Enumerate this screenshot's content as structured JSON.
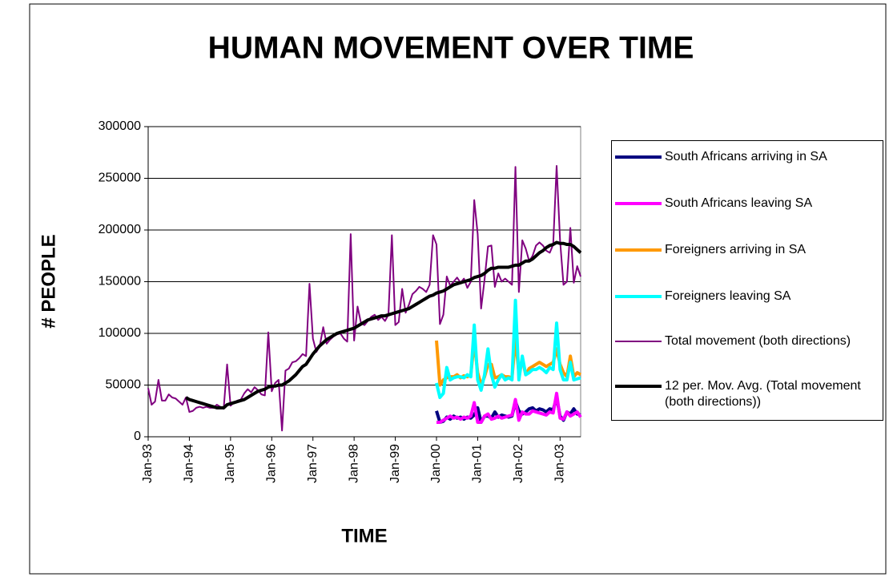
{
  "chart_data": {
    "type": "line",
    "title": "HUMAN MOVEMENT OVER TIME",
    "x_label": "TIME",
    "y_label": "# PEOPLE",
    "categories": [
      "Jan-93",
      null,
      null,
      null,
      null,
      null,
      null,
      null,
      null,
      null,
      null,
      null,
      "Jan-94",
      null,
      null,
      null,
      null,
      null,
      null,
      null,
      null,
      null,
      null,
      null,
      "Jan-95",
      null,
      null,
      null,
      null,
      null,
      null,
      null,
      null,
      null,
      null,
      null,
      "Jan-96",
      null,
      null,
      null,
      null,
      null,
      null,
      null,
      null,
      null,
      null,
      null,
      "Jan-97",
      null,
      null,
      null,
      null,
      null,
      null,
      null,
      null,
      null,
      null,
      null,
      "Jan-98",
      null,
      null,
      null,
      null,
      null,
      null,
      null,
      null,
      null,
      null,
      null,
      "Jan-99",
      null,
      null,
      null,
      null,
      null,
      null,
      null,
      null,
      null,
      null,
      null,
      "Jan-00",
      null,
      null,
      null,
      null,
      null,
      null,
      null,
      null,
      null,
      null,
      null,
      "Jan-01",
      null,
      null,
      null,
      null,
      null,
      null,
      null,
      null,
      null,
      null,
      null,
      "Jan-02",
      null,
      null,
      null,
      null,
      null,
      null,
      null,
      null,
      null,
      null,
      null,
      "Jan-03",
      null,
      null,
      null,
      null,
      null,
      null
    ],
    "ylim": [
      0,
      300000
    ],
    "yticks": [
      0,
      50000,
      100000,
      150000,
      200000,
      250000,
      300000
    ],
    "grid": true,
    "legend": "right",
    "series": [
      {
        "name": "South Africans arriving in SA",
        "color": "#000080",
        "width": 4,
        "values": [
          null,
          null,
          null,
          null,
          null,
          null,
          null,
          null,
          null,
          null,
          null,
          null,
          null,
          null,
          null,
          null,
          null,
          null,
          null,
          null,
          null,
          null,
          null,
          null,
          null,
          null,
          null,
          null,
          null,
          null,
          null,
          null,
          null,
          null,
          null,
          null,
          null,
          null,
          null,
          null,
          null,
          null,
          null,
          null,
          null,
          null,
          null,
          null,
          null,
          null,
          null,
          null,
          null,
          null,
          null,
          null,
          null,
          null,
          null,
          null,
          null,
          null,
          null,
          null,
          null,
          null,
          null,
          null,
          null,
          null,
          null,
          null,
          null,
          null,
          null,
          null,
          null,
          null,
          null,
          null,
          null,
          null,
          null,
          null,
          25000,
          14000,
          15000,
          19000,
          17000,
          20000,
          18000,
          19000,
          17000,
          19000,
          18000,
          21000,
          28000,
          14000,
          20000,
          20000,
          18000,
          24000,
          19000,
          21000,
          20000,
          19000,
          20000,
          34000,
          25000,
          22000,
          24000,
          27000,
          28000,
          25000,
          27000,
          26000,
          24000,
          27000,
          26000,
          38000,
          20000,
          16000,
          24000,
          22000,
          27000,
          22000,
          21000
        ]
      },
      {
        "name": "South Africans leaving SA",
        "color": "#ff00ff",
        "width": 4,
        "values": [
          null,
          null,
          null,
          null,
          null,
          null,
          null,
          null,
          null,
          null,
          null,
          null,
          null,
          null,
          null,
          null,
          null,
          null,
          null,
          null,
          null,
          null,
          null,
          null,
          null,
          null,
          null,
          null,
          null,
          null,
          null,
          null,
          null,
          null,
          null,
          null,
          null,
          null,
          null,
          null,
          null,
          null,
          null,
          null,
          null,
          null,
          null,
          null,
          null,
          null,
          null,
          null,
          null,
          null,
          null,
          null,
          null,
          null,
          null,
          null,
          null,
          null,
          null,
          null,
          null,
          null,
          null,
          null,
          null,
          null,
          null,
          null,
          null,
          null,
          null,
          null,
          null,
          null,
          null,
          null,
          null,
          null,
          null,
          null,
          14000,
          14000,
          16000,
          18000,
          20000,
          18000,
          19000,
          17000,
          19000,
          18000,
          20000,
          33000,
          14000,
          14000,
          20000,
          22000,
          17000,
          18000,
          20000,
          18000,
          19000,
          20000,
          21000,
          36000,
          16000,
          24000,
          22000,
          22000,
          25000,
          24000,
          23000,
          22000,
          21000,
          24000,
          23000,
          42000,
          18000,
          17000,
          24000,
          20000,
          22000,
          24000,
          19000
        ]
      },
      {
        "name": "Foreigners arriving in SA",
        "color": "#ff9900",
        "width": 4,
        "values": [
          null,
          null,
          null,
          null,
          null,
          null,
          null,
          null,
          null,
          null,
          null,
          null,
          null,
          null,
          null,
          null,
          null,
          null,
          null,
          null,
          null,
          null,
          null,
          null,
          null,
          null,
          null,
          null,
          null,
          null,
          null,
          null,
          null,
          null,
          null,
          null,
          null,
          null,
          null,
          null,
          null,
          null,
          null,
          null,
          null,
          null,
          null,
          null,
          null,
          null,
          null,
          null,
          null,
          null,
          null,
          null,
          null,
          null,
          null,
          null,
          null,
          null,
          null,
          null,
          null,
          null,
          null,
          null,
          null,
          null,
          null,
          null,
          null,
          null,
          null,
          null,
          null,
          null,
          null,
          null,
          null,
          null,
          null,
          null,
          93000,
          50000,
          55000,
          57000,
          58000,
          58000,
          60000,
          57000,
          59000,
          58000,
          60000,
          92000,
          62000,
          50000,
          58000,
          70000,
          70000,
          57000,
          58000,
          60000,
          58000,
          58000,
          57000,
          95000,
          62000,
          75000,
          60000,
          66000,
          68000,
          70000,
          72000,
          70000,
          68000,
          70000,
          72000,
          85000,
          70000,
          62000,
          58000,
          78000,
          58000,
          62000,
          60000
        ]
      },
      {
        "name": "Foreigners leaving SA",
        "color": "#00ffff",
        "width": 4,
        "values": [
          null,
          null,
          null,
          null,
          null,
          null,
          null,
          null,
          null,
          null,
          null,
          null,
          null,
          null,
          null,
          null,
          null,
          null,
          null,
          null,
          null,
          null,
          null,
          null,
          null,
          null,
          null,
          null,
          null,
          null,
          null,
          null,
          null,
          null,
          null,
          null,
          null,
          null,
          null,
          null,
          null,
          null,
          null,
          null,
          null,
          null,
          null,
          null,
          null,
          null,
          null,
          null,
          null,
          null,
          null,
          null,
          null,
          null,
          null,
          null,
          null,
          null,
          null,
          null,
          null,
          null,
          null,
          null,
          null,
          null,
          null,
          null,
          null,
          null,
          null,
          null,
          null,
          null,
          null,
          null,
          null,
          null,
          null,
          null,
          52000,
          38000,
          42000,
          67000,
          55000,
          57000,
          58000,
          58000,
          57000,
          60000,
          58000,
          108000,
          55000,
          45000,
          60000,
          85000,
          60000,
          48000,
          55000,
          60000,
          55000,
          57000,
          55000,
          132000,
          55000,
          78000,
          60000,
          62000,
          65000,
          65000,
          67000,
          65000,
          62000,
          67000,
          65000,
          110000,
          65000,
          55000,
          55000,
          72000,
          55000,
          56000,
          57000
        ]
      },
      {
        "name": "Total movement (both directions)",
        "color": "#800080",
        "width": 2,
        "values": [
          47000,
          31000,
          34000,
          55000,
          35000,
          35000,
          41000,
          38000,
          37000,
          34000,
          31000,
          38000,
          24000,
          25000,
          28000,
          29000,
          28000,
          29000,
          28000,
          28000,
          31000,
          29000,
          27000,
          70000,
          30000,
          33000,
          35000,
          36000,
          42000,
          46000,
          43000,
          48000,
          45000,
          41000,
          40000,
          101000,
          44000,
          52000,
          55000,
          6000,
          64000,
          66000,
          72000,
          73000,
          76000,
          80000,
          78000,
          148000,
          95000,
          82000,
          88000,
          106000,
          90000,
          94000,
          97000,
          99000,
          100000,
          95000,
          92000,
          196000,
          93000,
          126000,
          110000,
          108000,
          112000,
          116000,
          118000,
          113000,
          116000,
          112000,
          118000,
          195000,
          108000,
          111000,
          143000,
          120000,
          128000,
          138000,
          141000,
          145000,
          143000,
          140000,
          147000,
          195000,
          186000,
          109000,
          118000,
          155000,
          146000,
          150000,
          154000,
          149000,
          153000,
          144000,
          150000,
          229000,
          196000,
          124000,
          152000,
          184000,
          185000,
          145000,
          158000,
          150000,
          153000,
          150000,
          147000,
          261000,
          140000,
          190000,
          182000,
          170000,
          175000,
          185000,
          188000,
          185000,
          180000,
          178000,
          186000,
          262000,
          190000,
          147000,
          150000,
          202000,
          149000,
          165000,
          155000
        ]
      },
      {
        "name": "12 per. Mov. Avg. (Total movement (both directions))",
        "color": "#000000",
        "width": 4,
        "values": [
          null,
          null,
          null,
          null,
          null,
          null,
          null,
          null,
          null,
          null,
          null,
          38000,
          36000,
          35000,
          34000,
          33000,
          32000,
          31000,
          30000,
          29000,
          28000,
          28000,
          28000,
          31000,
          32000,
          33000,
          34000,
          35000,
          36000,
          38000,
          40000,
          42000,
          44000,
          45000,
          46000,
          48000,
          49000,
          49000,
          50000,
          50000,
          52000,
          54000,
          57000,
          60000,
          64000,
          68000,
          70000,
          75000,
          80000,
          84000,
          88000,
          91000,
          94000,
          96000,
          98000,
          100000,
          101000,
          102000,
          103000,
          104000,
          105000,
          107000,
          109000,
          111000,
          113000,
          114000,
          115000,
          116000,
          117000,
          117000,
          118000,
          119000,
          120000,
          121000,
          122000,
          123000,
          124000,
          126000,
          128000,
          130000,
          132000,
          134000,
          136000,
          137000,
          139000,
          140000,
          141000,
          143000,
          145000,
          147000,
          148000,
          149000,
          150000,
          151000,
          152000,
          154000,
          155000,
          156000,
          158000,
          161000,
          163000,
          163000,
          164000,
          164000,
          164000,
          164000,
          165000,
          166000,
          166000,
          168000,
          170000,
          170000,
          172000,
          175000,
          178000,
          180000,
          183000,
          185000,
          186000,
          188000,
          187000,
          187000,
          186000,
          186000,
          184000,
          181000,
          178000
        ]
      }
    ]
  }
}
